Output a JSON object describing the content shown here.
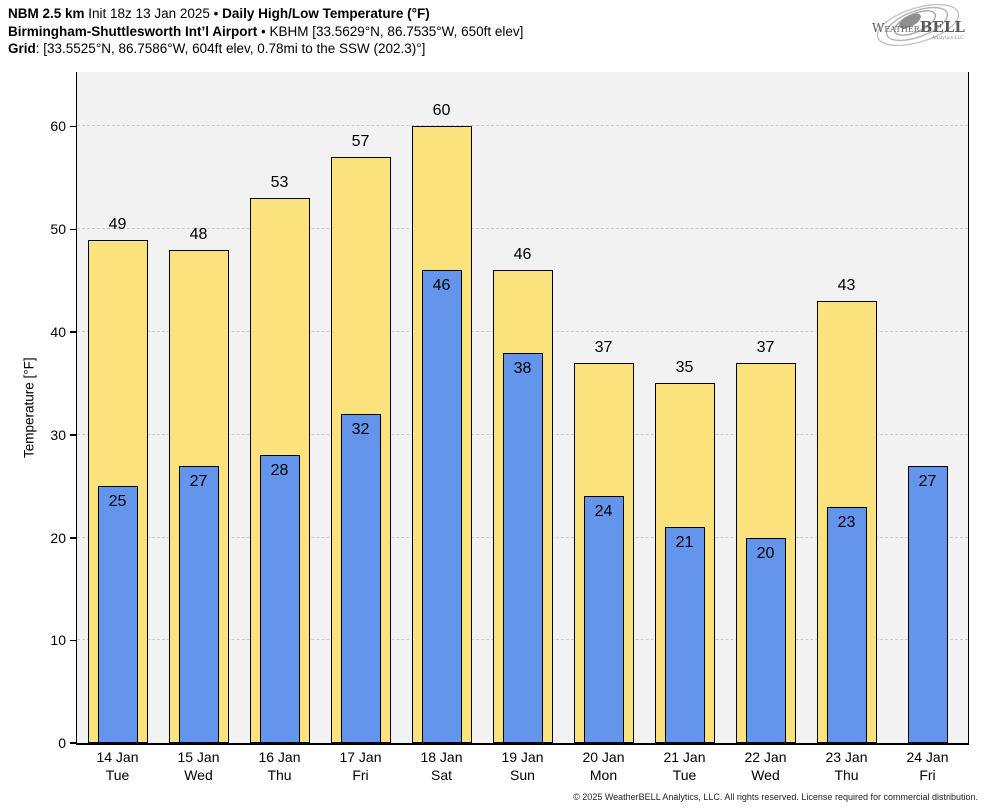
{
  "header": {
    "line1_model": "NBM 2.5 km",
    "line1_init": " Init 18z 13 Jan 2025 • ",
    "line1_product": "Daily High/Low Temperature (°F)",
    "line2_station": "Birmingham-Shuttlesworth Int’l Airport",
    "line2_info": " • KBHM [33.5629°N, 86.7535°W, 650ft elev]",
    "line3_label": "Grid",
    "line3_info": ": [33.5525°N, 86.7586°W, 604ft elev, 0.78mi to the SSW (202.3)°]"
  },
  "logo": {
    "name_weather": "Weather",
    "name_bell": "BELL",
    "tagline": "Analytics LLC"
  },
  "chart_data": {
    "type": "bar",
    "title": "Daily High/Low Temperature (°F)",
    "ylabel": "Temperature [°F]",
    "ylim": [
      0,
      65.3
    ],
    "yticks": [
      0,
      10,
      20,
      30,
      40,
      50,
      60
    ],
    "grid": "horizontal dash-dot lines at each ytick above 0",
    "legend": "none",
    "plot_background": "#F2F2F2",
    "grid_color": "#CCCCCC",
    "categories": [
      "14 Jan",
      "15 Jan",
      "16 Jan",
      "17 Jan",
      "18 Jan",
      "19 Jan",
      "20 Jan",
      "21 Jan",
      "22 Jan",
      "23 Jan",
      "24 Jan"
    ],
    "weekdays": [
      "Tue",
      "Wed",
      "Thu",
      "Fri",
      "Sat",
      "Sun",
      "Mon",
      "Tue",
      "Wed",
      "Thu",
      "Fri"
    ],
    "series": [
      {
        "name": "Daily High",
        "color": "#FCE27C",
        "values": [
          49,
          48,
          53,
          57,
          60,
          46,
          37,
          35,
          37,
          43,
          null
        ]
      },
      {
        "name": "Daily Low",
        "color": "#6495ED",
        "values": [
          25,
          27,
          28,
          32,
          46,
          38,
          24,
          21,
          20,
          23,
          27
        ]
      }
    ]
  },
  "footer": {
    "copyright": "© 2025 WeatherBELL Analytics, LLC. All rights reserved. License required for commercial distribution."
  }
}
